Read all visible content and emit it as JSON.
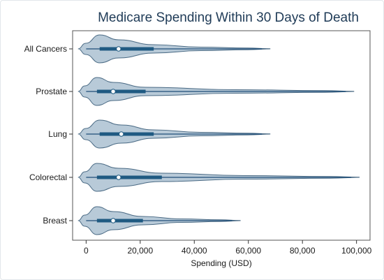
{
  "chart_data": {
    "type": "violin",
    "orientation": "horizontal",
    "title": "Medicare Spending Within 30 Days of Death",
    "xlabel": "Spending (USD)",
    "ylabel": "",
    "xlim": [
      -5000,
      105000
    ],
    "x_ticks": [
      0,
      20000,
      40000,
      60000,
      80000,
      100000
    ],
    "x_tick_labels": [
      "0",
      "20,000",
      "40,000",
      "60,000",
      "80,000",
      "100,000"
    ],
    "grid": false,
    "legend": "none",
    "colors": {
      "violin_fill": "#b0c4d4",
      "violin_stroke": "#4a6a84",
      "box": "#1f5a82",
      "whisker": "#1f4e79",
      "median_marker": "#ffffff",
      "title": "#1f3b57"
    },
    "categories": [
      "All Cancers",
      "Prostate",
      "Lung",
      "Colorectal",
      "Breast"
    ],
    "distributions": [
      {
        "category": "All Cancers",
        "median": 12000,
        "q1": 5000,
        "q3": 25000,
        "whisker_low": 0,
        "whisker_high": 65000
      },
      {
        "category": "Prostate",
        "median": 10000,
        "q1": 4000,
        "q3": 22000,
        "whisker_low": 0,
        "whisker_high": 96000
      },
      {
        "category": "Lung",
        "median": 13000,
        "q1": 5000,
        "q3": 25000,
        "whisker_low": 0,
        "whisker_high": 65000
      },
      {
        "category": "Colorectal",
        "median": 12000,
        "q1": 4000,
        "q3": 28000,
        "whisker_low": 0,
        "whisker_high": 98000
      },
      {
        "category": "Breast",
        "median": 10000,
        "q1": 4000,
        "q3": 21000,
        "whisker_low": 0,
        "whisker_high": 54000
      }
    ]
  }
}
